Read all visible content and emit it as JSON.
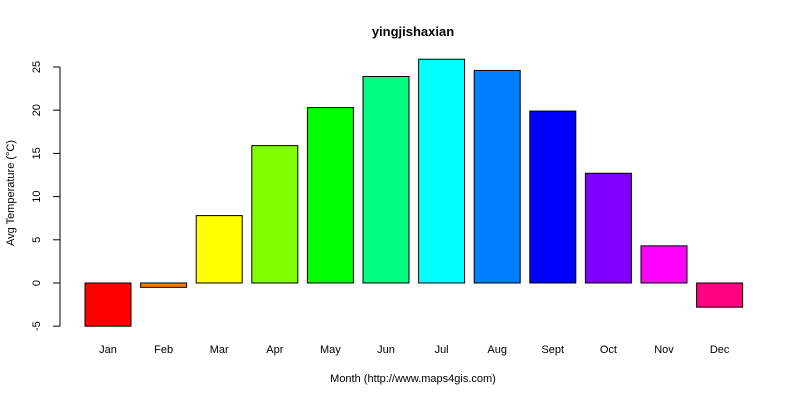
{
  "chart_data": {
    "type": "bar",
    "title": "yingjishaxian",
    "xlabel": "Month (http://www.maps4gis.com)",
    "ylabel": "Avg Temperature (°C)",
    "categories": [
      "Jan",
      "Feb",
      "Mar",
      "Apr",
      "May",
      "Jun",
      "Jul",
      "Aug",
      "Sept",
      "Oct",
      "Nov",
      "Dec"
    ],
    "values": [
      -5.0,
      -0.5,
      7.8,
      15.9,
      20.3,
      23.9,
      25.9,
      24.6,
      19.9,
      12.7,
      4.3,
      -2.8
    ],
    "colors": [
      "#FF0000",
      "#FF8000",
      "#FFFF00",
      "#80FF00",
      "#00FF00",
      "#00FF80",
      "#00FFFF",
      "#0080FF",
      "#0000FF",
      "#8000FF",
      "#FF00FF",
      "#FF0080"
    ],
    "ylim": [
      -5,
      25
    ],
    "yticks": [
      -5,
      0,
      5,
      10,
      15,
      20,
      25
    ],
    "grid": false,
    "legend": "none"
  }
}
